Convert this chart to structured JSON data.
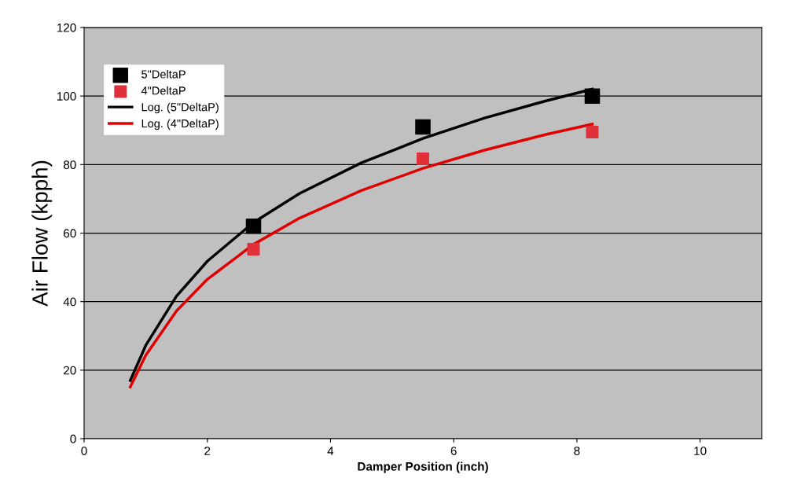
{
  "chart_data": {
    "type": "scatter",
    "xlabel": "Damper Position (inch)",
    "ylabel": "Air Flow (kpph)",
    "x": [
      2.75,
      5.5,
      8.25
    ],
    "series": [
      {
        "name": "5\"DeltaP",
        "color": "#000000",
        "values": [
          62,
          91,
          100
        ],
        "marker": "square"
      },
      {
        "name": "4\"DeltaP",
        "color": "#e0303a",
        "values": [
          55.3,
          81.7,
          89.5
        ],
        "marker": "square"
      },
      {
        "name": "Log. (5\"DeltaP)",
        "type": "line",
        "color": "#000000",
        "x": [
          0.75,
          1,
          1.5,
          2,
          2.75,
          3.5,
          4.5,
          5.5,
          6.5,
          7.5,
          8.25
        ],
        "values": [
          17.0,
          27.2,
          41.6,
          51.8,
          63.1,
          71.6,
          80.5,
          87.6,
          93.6,
          98.6,
          102.0
        ],
        "marker": "none"
      },
      {
        "name": "Log. (4\"DeltaP)",
        "type": "line",
        "color": "#e00000",
        "x": [
          0.75,
          1,
          1.5,
          2,
          2.75,
          3.5,
          4.5,
          5.5,
          6.5,
          7.5,
          8.25
        ],
        "values": [
          15.1,
          24.3,
          37.3,
          46.5,
          56.7,
          64.4,
          72.4,
          78.9,
          84.2,
          88.8,
          91.8
        ],
        "marker": "none"
      }
    ],
    "xlim": [
      0,
      11
    ],
    "xticks": [
      0,
      2,
      4,
      6,
      8,
      10
    ],
    "ylim": [
      0,
      120
    ],
    "yticks": [
      0,
      20,
      40,
      60,
      80,
      100,
      120
    ],
    "grid": "y",
    "legend": "top left"
  }
}
